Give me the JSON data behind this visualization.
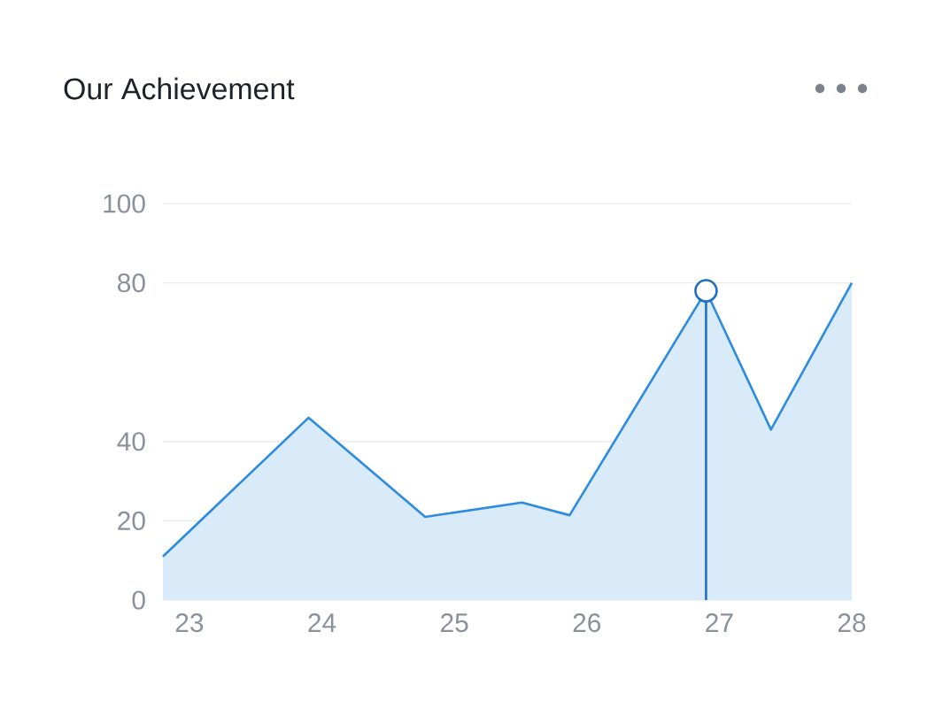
{
  "chart_data": {
    "type": "area",
    "title": "Our Achievement",
    "x": [
      22.8,
      23.9,
      24.78,
      25.51,
      25.87,
      26.9,
      27.39,
      28.0
    ],
    "series": [
      {
        "color": "#2d8be0",
        "values": [
          11,
          46,
          21,
          24.6,
          21.4,
          78,
          43,
          80
        ]
      }
    ],
    "xlim": [
      22.8,
      28
    ],
    "xticks": [
      23,
      24,
      25,
      26,
      27,
      28
    ],
    "ylim": [
      0,
      100
    ],
    "yticks": [
      0,
      20,
      40,
      80,
      100
    ],
    "grid": "y",
    "ref_lines": [
      {
        "axis": "x",
        "value": 26.9,
        "color": "#1f6fc4"
      }
    ]
  }
}
